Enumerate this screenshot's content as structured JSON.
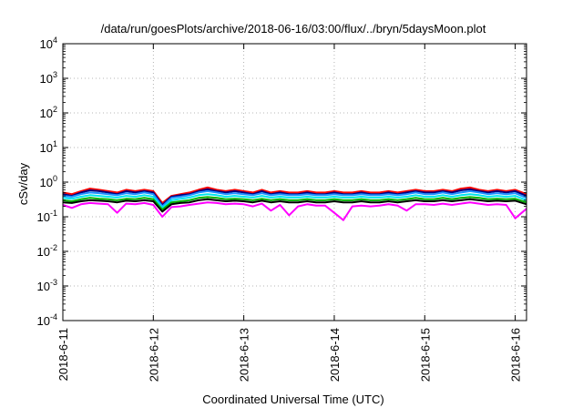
{
  "chart_data": {
    "type": "line",
    "title": "/data/run/goesPlots/archive/2018-06-16/03:00/flux/../bryn/5daysMoon.plot",
    "xlabel": "Coordinated Universal Time (UTC)",
    "ylabel": "cSv/day",
    "y_scale": "log",
    "ylim": [
      0.0001,
      10000
    ],
    "xlim": [
      "2018-06-11T00:00",
      "2018-06-16T03:00"
    ],
    "y_ticks": [
      {
        "value": 0.0001,
        "base": "10",
        "exp": "-4"
      },
      {
        "value": 0.001,
        "base": "10",
        "exp": "-3"
      },
      {
        "value": 0.01,
        "base": "10",
        "exp": "-2"
      },
      {
        "value": 0.1,
        "base": "10",
        "exp": "-1"
      },
      {
        "value": 1,
        "base": "10",
        "exp": "0"
      },
      {
        "value": 10,
        "base": "10",
        "exp": "1"
      },
      {
        "value": 100,
        "base": "10",
        "exp": "2"
      },
      {
        "value": 1000,
        "base": "10",
        "exp": "3"
      },
      {
        "value": 10000,
        "base": "10",
        "exp": "4"
      }
    ],
    "x_ticks": [
      {
        "date": "2018-06-11",
        "label": "2018-6-11"
      },
      {
        "date": "2018-06-12",
        "label": "2018-6-12"
      },
      {
        "date": "2018-06-13",
        "label": "2018-6-13"
      },
      {
        "date": "2018-06-14",
        "label": "2018-6-14"
      },
      {
        "date": "2018-06-15",
        "label": "2018-6-15"
      },
      {
        "date": "2018-06-16",
        "label": "2018-6-16"
      }
    ],
    "grid": true,
    "grid_style": "dotted",
    "legend": "none",
    "x_days": [
      0,
      0.1,
      0.2,
      0.3,
      0.4,
      0.5,
      0.6,
      0.7,
      0.8,
      0.9,
      1.0,
      1.1,
      1.2,
      1.3,
      1.4,
      1.5,
      1.6,
      1.7,
      1.8,
      1.9,
      2.0,
      2.1,
      2.2,
      2.3,
      2.4,
      2.5,
      2.6,
      2.7,
      2.8,
      2.9,
      3.0,
      3.1,
      3.2,
      3.3,
      3.4,
      3.5,
      3.6,
      3.7,
      3.8,
      3.9,
      4.0,
      4.1,
      4.2,
      4.3,
      4.4,
      4.5,
      4.6,
      4.7,
      4.8,
      4.9,
      5.0,
      5.125
    ],
    "series": [
      {
        "color": "#ff0000",
        "values": [
          0.5,
          0.45,
          0.55,
          0.65,
          0.6,
          0.55,
          0.5,
          0.6,
          0.55,
          0.6,
          0.55,
          0.25,
          0.4,
          0.45,
          0.5,
          0.6,
          0.7,
          0.6,
          0.55,
          0.6,
          0.55,
          0.5,
          0.6,
          0.5,
          0.55,
          0.5,
          0.5,
          0.55,
          0.5,
          0.5,
          0.55,
          0.5,
          0.5,
          0.55,
          0.5,
          0.5,
          0.55,
          0.5,
          0.55,
          0.6,
          0.55,
          0.55,
          0.6,
          0.55,
          0.65,
          0.7,
          0.6,
          0.55,
          0.6,
          0.55,
          0.6,
          0.45
        ]
      },
      {
        "color": "#000080",
        "values": [
          0.45,
          0.4,
          0.5,
          0.58,
          0.55,
          0.5,
          0.45,
          0.55,
          0.5,
          0.55,
          0.5,
          0.22,
          0.38,
          0.42,
          0.45,
          0.55,
          0.62,
          0.55,
          0.5,
          0.55,
          0.5,
          0.45,
          0.55,
          0.45,
          0.5,
          0.45,
          0.45,
          0.5,
          0.45,
          0.45,
          0.5,
          0.45,
          0.45,
          0.5,
          0.45,
          0.45,
          0.5,
          0.45,
          0.5,
          0.55,
          0.5,
          0.5,
          0.55,
          0.5,
          0.58,
          0.62,
          0.55,
          0.5,
          0.55,
          0.5,
          0.55,
          0.4
        ]
      },
      {
        "color": "#1e90ff",
        "values": [
          0.4,
          0.38,
          0.45,
          0.5,
          0.48,
          0.45,
          0.42,
          0.48,
          0.45,
          0.5,
          0.45,
          0.2,
          0.35,
          0.38,
          0.42,
          0.5,
          0.55,
          0.5,
          0.45,
          0.48,
          0.45,
          0.42,
          0.48,
          0.42,
          0.45,
          0.42,
          0.42,
          0.45,
          0.42,
          0.42,
          0.45,
          0.42,
          0.42,
          0.45,
          0.42,
          0.42,
          0.45,
          0.42,
          0.45,
          0.5,
          0.45,
          0.45,
          0.5,
          0.45,
          0.5,
          0.55,
          0.5,
          0.45,
          0.48,
          0.45,
          0.48,
          0.35
        ]
      },
      {
        "color": "#00e5ee",
        "values": [
          0.35,
          0.33,
          0.38,
          0.42,
          0.4,
          0.38,
          0.36,
          0.4,
          0.38,
          0.42,
          0.38,
          0.18,
          0.3,
          0.33,
          0.36,
          0.42,
          0.45,
          0.42,
          0.38,
          0.4,
          0.38,
          0.36,
          0.4,
          0.36,
          0.38,
          0.36,
          0.36,
          0.38,
          0.36,
          0.36,
          0.38,
          0.36,
          0.36,
          0.38,
          0.36,
          0.36,
          0.38,
          0.36,
          0.38,
          0.42,
          0.38,
          0.38,
          0.42,
          0.38,
          0.42,
          0.45,
          0.42,
          0.38,
          0.4,
          0.38,
          0.4,
          0.3
        ]
      },
      {
        "color": "#00b000",
        "values": [
          0.3,
          0.28,
          0.32,
          0.35,
          0.33,
          0.32,
          0.3,
          0.33,
          0.32,
          0.35,
          0.32,
          0.16,
          0.26,
          0.28,
          0.3,
          0.35,
          0.37,
          0.35,
          0.32,
          0.33,
          0.32,
          0.3,
          0.33,
          0.3,
          0.32,
          0.3,
          0.3,
          0.32,
          0.3,
          0.3,
          0.32,
          0.3,
          0.3,
          0.32,
          0.3,
          0.3,
          0.32,
          0.3,
          0.32,
          0.35,
          0.32,
          0.32,
          0.35,
          0.32,
          0.35,
          0.37,
          0.35,
          0.32,
          0.33,
          0.32,
          0.33,
          0.26
        ]
      },
      {
        "color": "#000000",
        "values": [
          0.26,
          0.25,
          0.28,
          0.3,
          0.29,
          0.28,
          0.26,
          0.29,
          0.28,
          0.3,
          0.28,
          0.14,
          0.23,
          0.25,
          0.26,
          0.3,
          0.32,
          0.3,
          0.28,
          0.29,
          0.28,
          0.26,
          0.29,
          0.26,
          0.28,
          0.26,
          0.26,
          0.28,
          0.26,
          0.26,
          0.28,
          0.26,
          0.26,
          0.28,
          0.26,
          0.26,
          0.28,
          0.26,
          0.28,
          0.3,
          0.28,
          0.28,
          0.3,
          0.28,
          0.3,
          0.32,
          0.3,
          0.28,
          0.29,
          0.28,
          0.29,
          0.23
        ]
      },
      {
        "color": "#ff00ff",
        "values": [
          0.22,
          0.18,
          0.23,
          0.25,
          0.24,
          0.23,
          0.13,
          0.24,
          0.23,
          0.25,
          0.22,
          0.1,
          0.19,
          0.2,
          0.22,
          0.24,
          0.26,
          0.25,
          0.23,
          0.24,
          0.23,
          0.2,
          0.24,
          0.15,
          0.22,
          0.11,
          0.2,
          0.23,
          0.21,
          0.21,
          0.13,
          0.08,
          0.2,
          0.21,
          0.2,
          0.21,
          0.23,
          0.21,
          0.15,
          0.23,
          0.23,
          0.22,
          0.24,
          0.22,
          0.24,
          0.26,
          0.24,
          0.22,
          0.23,
          0.22,
          0.09,
          0.17
        ]
      }
    ]
  }
}
